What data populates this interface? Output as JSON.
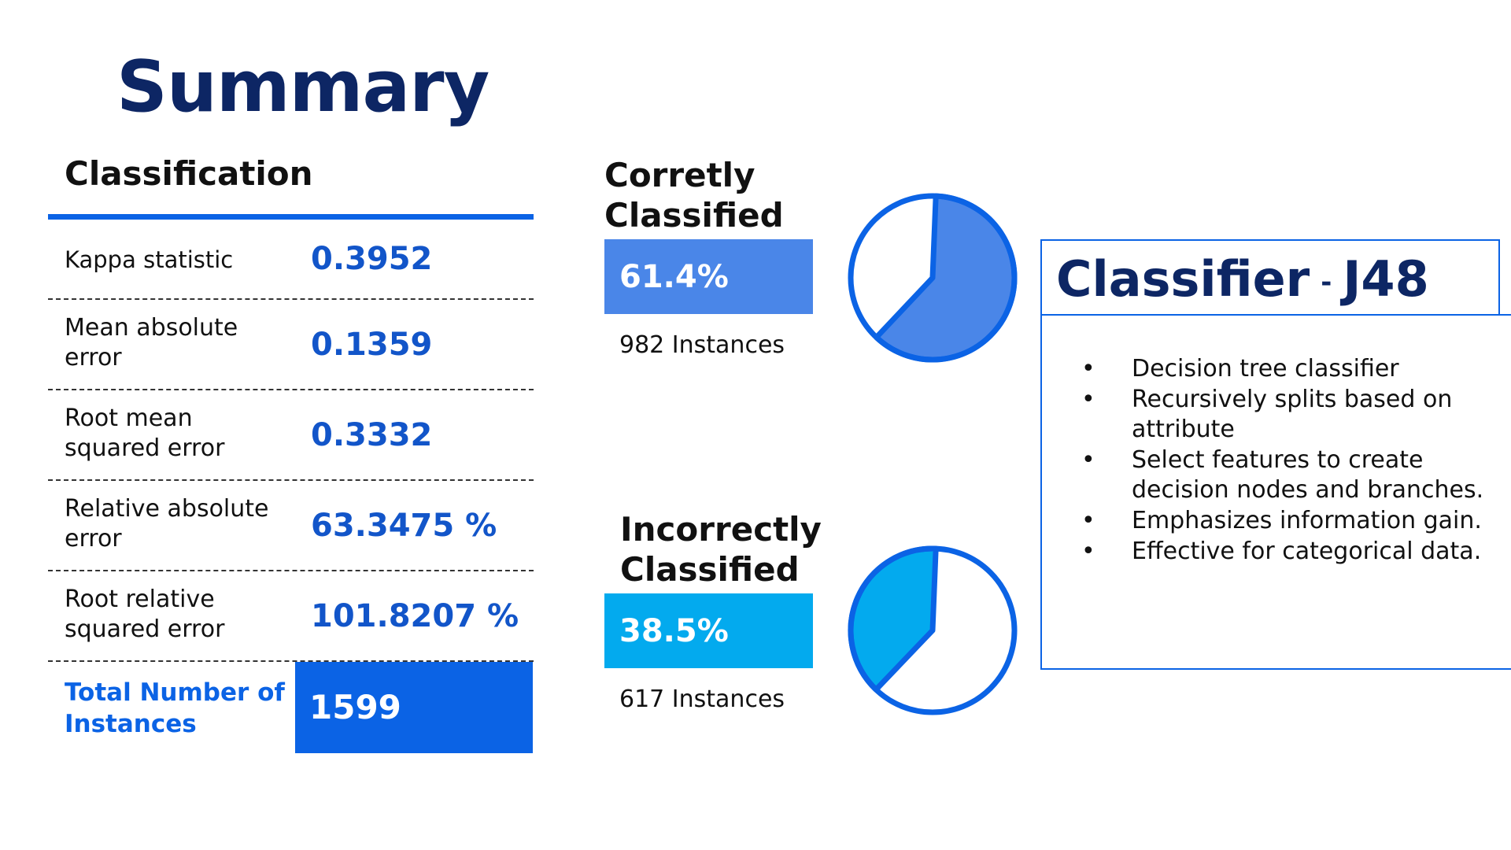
{
  "page": {
    "title": "Summary"
  },
  "classification": {
    "heading": "Classification",
    "metrics": [
      {
        "label": "Kappa statistic",
        "value": "0.3952"
      },
      {
        "label": "Mean absolute error",
        "value": "0.1359"
      },
      {
        "label": "Root mean squared error",
        "value": "0.3332"
      },
      {
        "label": "Relative absolute error",
        "value": "63.3475 %"
      },
      {
        "label": "Root relative squared error",
        "value": "101.8207 %"
      }
    ],
    "total": {
      "label": "Total Number of Instances",
      "value": "1599"
    }
  },
  "correct": {
    "title": "Corretly Classified",
    "percent_text": "61.4%",
    "fraction": 0.614,
    "instances": "982 Instances",
    "color": "#4a86e8"
  },
  "incorrect": {
    "title": "Incorrectly Classified",
    "percent_text": "38.5%",
    "fraction": 0.385,
    "instances": "617 Instances",
    "color": "#03aaee"
  },
  "classifier": {
    "name": "Classifier",
    "separator": "-",
    "model": "J48",
    "bullets": [
      "Decision tree classifier",
      "Recursively splits based on attribute",
      "Select features to create decision nodes and branches.",
      "Emphasizes information gain.",
      "Effective for categorical data."
    ]
  },
  "colors": {
    "accent": "#0b63e5",
    "navy": "#0d2664",
    "value_blue": "#1255c9"
  }
}
